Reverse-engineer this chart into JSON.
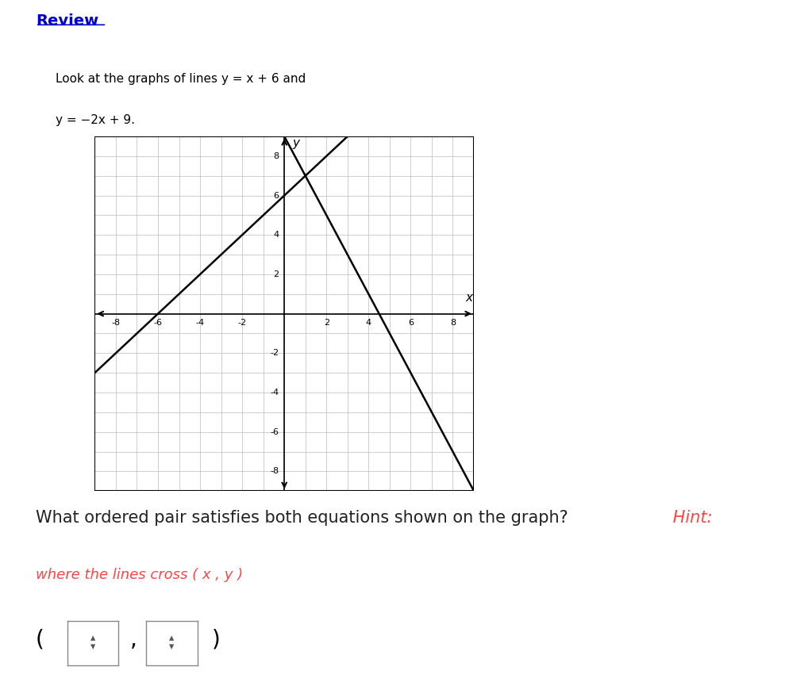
{
  "title_text": "Review",
  "title_color": "#0000CC",
  "desc_line1a": "Look at the graphs of lines ",
  "desc_line1b": "y = x + 6",
  "desc_line1c": " and",
  "desc_line2": "y = −2x + 9.",
  "line1_slope": 1,
  "line1_intercept": 6,
  "line2_slope": -2,
  "line2_intercept": 9,
  "xmin": -9,
  "xmax": 9,
  "ymin": -9,
  "ymax": 9,
  "xticks": [
    -8,
    -6,
    -4,
    -2,
    2,
    4,
    6,
    8
  ],
  "yticks": [
    -8,
    -6,
    -4,
    -2,
    2,
    4,
    6,
    8
  ],
  "grid_color": "#bbbbbb",
  "line_color": "#000000",
  "axis_color": "#000000",
  "background_color": "#ffffff",
  "question_text": "What ordered pair satisfies both equations shown on the graph?",
  "question_color": "#222222",
  "hint_text": " Hint:",
  "hint_color": "#FF4444",
  "hint_subtext": "where the lines cross ( x , y )",
  "hint_subtext_color": "#FF4444"
}
